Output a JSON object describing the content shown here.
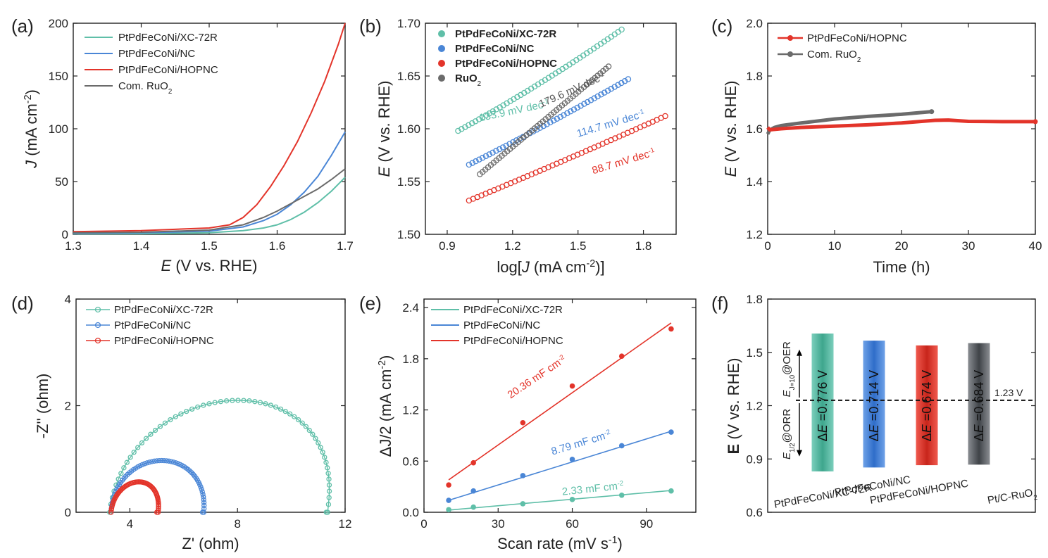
{
  "chart_data": [
    {
      "id": "a",
      "type": "line",
      "panel_label": "(a)",
      "xlabel_italic": "E",
      "xlabel_rest": " (V vs. RHE)",
      "ylabel_italic": "J",
      "ylabel_rest": " (mA cm",
      "ylabel_sup": "-2",
      "ylabel_end": ")",
      "xlim": [
        1.3,
        1.7
      ],
      "ylim": [
        0,
        200
      ],
      "xticks": [
        "1.3",
        "1.4",
        "1.5",
        "1.6",
        "1.7"
      ],
      "yticks": [
        "0",
        "50",
        "100",
        "150",
        "200"
      ],
      "series": [
        {
          "name": "PtPdFeCoNi/XC-72R",
          "color": "#5fbfa8",
          "x": [
            1.3,
            1.4,
            1.5,
            1.55,
            1.58,
            1.6,
            1.62,
            1.64,
            1.66,
            1.68,
            1.7
          ],
          "y": [
            0.5,
            0.6,
            1.5,
            3.5,
            6,
            9,
            14,
            21,
            30,
            41,
            54
          ]
        },
        {
          "name": "PtPdFeCoNi/NC",
          "color": "#4a86d6",
          "x": [
            1.3,
            1.4,
            1.5,
            1.55,
            1.58,
            1.6,
            1.62,
            1.64,
            1.66,
            1.68,
            1.7
          ],
          "y": [
            1,
            1.5,
            3,
            7,
            13,
            19,
            28,
            40,
            55,
            75,
            97
          ]
        },
        {
          "name": "PtPdFeCoNi/HOPNC",
          "color": "#e3342a",
          "x": [
            1.3,
            1.4,
            1.5,
            1.53,
            1.55,
            1.57,
            1.59,
            1.61,
            1.63,
            1.65,
            1.67,
            1.69,
            1.7
          ],
          "y": [
            2.5,
            3.5,
            6,
            9,
            16,
            28,
            45,
            65,
            88,
            115,
            145,
            180,
            200
          ]
        },
        {
          "name": "Com. RuO2",
          "color": "#6b6b6b",
          "x": [
            1.3,
            1.4,
            1.5,
            1.55,
            1.58,
            1.6,
            1.62,
            1.64,
            1.66,
            1.68,
            1.7
          ],
          "y": [
            1.5,
            2,
            4,
            9,
            16,
            22,
            29,
            36,
            43,
            52,
            62
          ]
        }
      ],
      "legend": [
        "PtPdFeCoNi/XC-72R",
        "PtPdFeCoNi/NC",
        "PtPdFeCoNi/HOPNC",
        "Com. RuO"
      ],
      "legend_sub": [
        "",
        "",
        "",
        "2"
      ]
    },
    {
      "id": "b",
      "type": "scatter",
      "panel_label": "(b)",
      "xlabel": "log[",
      "xlabel_italic": "J",
      "xlabel_rest": " (mA cm",
      "xlabel_sup": "-2",
      "xlabel_end": ")]",
      "ylabel_italic": "E",
      "ylabel_rest": " (V vs. RHE)",
      "xlim": [
        0.8,
        1.95
      ],
      "ylim": [
        1.5,
        1.7
      ],
      "xticks": [
        "0.9",
        "1.2",
        "1.5",
        "1.8"
      ],
      "xtick_values": [
        0.9,
        1.2,
        1.5,
        1.8
      ],
      "yticks": [
        "1.50",
        "1.55",
        "1.60",
        "1.65",
        "1.70"
      ],
      "ytick_values": [
        1.5,
        1.55,
        1.6,
        1.65,
        1.7
      ],
      "series": [
        {
          "name": "PtPdFeCoNi/XC-72R",
          "color": "#5fbfa8",
          "x0": 0.95,
          "x1": 1.7,
          "y0": 1.598,
          "y1": 1.694,
          "curve": 0.015
        },
        {
          "name": "PtPdFeCoNi/NC",
          "color": "#4a86d6",
          "x0": 1.0,
          "x1": 1.73,
          "y0": 1.566,
          "y1": 1.647,
          "curve": 0.008
        },
        {
          "name": "PtPdFeCoNi/HOPNC",
          "color": "#e3342a",
          "x0": 1.0,
          "x1": 1.9,
          "y0": 1.532,
          "y1": 1.612,
          "curve": 0.005
        },
        {
          "name": "RuO2",
          "color": "#6b6b6b",
          "x0": 1.05,
          "x1": 1.64,
          "y0": 1.557,
          "y1": 1.659,
          "curve": 0.0
        }
      ],
      "legend": [
        "PtPdFeCoNi/XC-72R",
        "PtPdFeCoNi/NC",
        "PtPdFeCoNi/HOPNC",
        "RuO"
      ],
      "legend_sub": [
        "",
        "",
        "",
        "2"
      ],
      "annotations": [
        {
          "text": "133.9 mV dec",
          "sup": "-1",
          "color": "#5fbfa8",
          "x": 1.05,
          "y": 1.607,
          "rot": -12
        },
        {
          "text": "179.6 mV dec",
          "sup": "-1",
          "color": "#555555",
          "x": 1.33,
          "y": 1.62,
          "rot": -24
        },
        {
          "text": "114.7 mV dec",
          "sup": "-1",
          "color": "#4a86d6",
          "x": 1.5,
          "y": 1.592,
          "rot": -17
        },
        {
          "text": "88.7 mV dec",
          "sup": "-1",
          "color": "#e3342a",
          "x": 1.57,
          "y": 1.557,
          "rot": -17
        }
      ]
    },
    {
      "id": "c",
      "type": "line",
      "panel_label": "(c)",
      "xlabel": "Time (h)",
      "ylabel_italic": "E",
      "ylabel_rest": " (V vs. RHE)",
      "xlim": [
        0,
        40
      ],
      "ylim": [
        1.2,
        2.0
      ],
      "xticks": [
        "0",
        "10",
        "20",
        "30",
        "40"
      ],
      "yticks": [
        "1.2",
        "1.4",
        "1.6",
        "1.8",
        "2.0"
      ],
      "series": [
        {
          "name": "PtPdFeCoNi/HOPNC",
          "color": "#e3342a",
          "x": [
            0,
            0.3,
            2,
            5,
            10,
            15,
            20,
            25,
            27,
            30,
            35,
            40
          ],
          "y": [
            1.605,
            1.596,
            1.6,
            1.605,
            1.61,
            1.615,
            1.622,
            1.632,
            1.633,
            1.628,
            1.627,
            1.627
          ]
        },
        {
          "name": "Com. RuO2",
          "color": "#6b6b6b",
          "x": [
            0,
            0.3,
            1,
            2,
            5,
            10,
            15,
            20,
            24.5
          ],
          "y": [
            1.58,
            1.595,
            1.605,
            1.612,
            1.622,
            1.637,
            1.647,
            1.655,
            1.665
          ]
        }
      ],
      "legend": [
        "PtPdFeCoNi/HOPNC",
        "Com. RuO"
      ],
      "legend_sub": [
        "",
        "2"
      ]
    },
    {
      "id": "d",
      "type": "scatter",
      "panel_label": "(d)",
      "xlabel": "Z' (ohm)",
      "ylabel": "-Z'' (ohm)",
      "xlim": [
        2,
        12
      ],
      "ylim": [
        0,
        4
      ],
      "xticks": [
        "4",
        "8",
        "12"
      ],
      "xtick_values": [
        4,
        8,
        12
      ],
      "yticks": [
        "0",
        "2",
        "4"
      ],
      "ytick_values": [
        0,
        2,
        4
      ],
      "series": [
        {
          "name": "PtPdFeCoNi/XC-72R",
          "color": "#5fbfa8",
          "start": 3.25,
          "end": 11.35,
          "height": 2.1,
          "peak": 8.1
        },
        {
          "name": "PtPdFeCoNi/NC",
          "color": "#4a86d6",
          "start": 3.3,
          "end": 6.75,
          "height": 0.97,
          "peak": 5.2
        },
        {
          "name": "PtPdFeCoNi/HOPNC",
          "color": "#e3342a",
          "start": 3.3,
          "end": 5.05,
          "height": 0.57,
          "peak": 4.35
        }
      ],
      "legend": [
        "PtPdFeCoNi/XC-72R",
        "PtPdFeCoNi/NC",
        "PtPdFeCoNi/HOPNC"
      ]
    },
    {
      "id": "e",
      "type": "scatter",
      "panel_label": "(e)",
      "xlabel": "Scan rate (mV s",
      "xlabel_sup": "-1",
      "xlabel_end": ")",
      "ylabel": "ΔJ/2 (mA cm",
      "ylabel_sup": "-2",
      "ylabel_end": ")",
      "xlim": [
        0,
        110
      ],
      "ylim": [
        0,
        2.5
      ],
      "xticks": [
        "0",
        "30",
        "60",
        "90"
      ],
      "xtick_values": [
        0,
        30,
        60,
        90
      ],
      "yticks": [
        "0.0",
        "0.6",
        "1.2",
        "1.8",
        "2.4"
      ],
      "ytick_values": [
        0,
        0.6,
        1.2,
        1.8,
        2.4
      ],
      "series": [
        {
          "name": "PtPdFeCoNi/XC-72R",
          "color": "#5fbfa8",
          "x": [
            10,
            20,
            40,
            60,
            80,
            100
          ],
          "y": [
            0.03,
            0.06,
            0.1,
            0.15,
            0.2,
            0.25
          ],
          "fit": [
            [
              10,
              0.025
            ],
            [
              100,
              0.255
            ]
          ]
        },
        {
          "name": "PtPdFeCoNi/NC",
          "color": "#4a86d6",
          "x": [
            10,
            20,
            40,
            60,
            80,
            100
          ],
          "y": [
            0.14,
            0.25,
            0.43,
            0.62,
            0.78,
            0.94
          ],
          "fit": [
            [
              10,
              0.14
            ],
            [
              100,
              0.95
            ]
          ]
        },
        {
          "name": "PtPdFeCoNi/HOPNC",
          "color": "#e3342a",
          "x": [
            10,
            20,
            40,
            60,
            80,
            100
          ],
          "y": [
            0.32,
            0.58,
            1.05,
            1.48,
            1.83,
            2.15
          ],
          "fit": [
            [
              10,
              0.38
            ],
            [
              100,
              2.22
            ]
          ]
        }
      ],
      "legend": [
        "PtPdFeCoNi/XC-72R",
        "PtPdFeCoNi/NC",
        "PtPdFeCoNi/HOPNC"
      ],
      "annotations": [
        {
          "text": "20.36 mF cm",
          "sup": "-2",
          "color": "#e3342a",
          "x": 35,
          "y": 1.33,
          "rot": -34
        },
        {
          "text": "8.79 mF cm",
          "sup": "-2",
          "color": "#4a86d6",
          "x": 52,
          "y": 0.67,
          "rot": -17
        },
        {
          "text": "2.33 mF cm",
          "sup": "-2",
          "color": "#5fbfa8",
          "x": 56,
          "y": 0.2,
          "rot": -6
        }
      ]
    },
    {
      "id": "f",
      "type": "bar",
      "panel_label": "(f)",
      "ylabel": "E (V vs. RHE)",
      "ylim": [
        0.6,
        1.8
      ],
      "yticks": [
        "0.6",
        "0.9",
        "1.2",
        "1.5",
        "1.8"
      ],
      "ytick_values": [
        0.6,
        0.9,
        1.2,
        1.5,
        1.8
      ],
      "categories": [
        "PtPdFeCoNi/XC-72R",
        "PtPdFeCoNi/NC",
        "PtPdFeCoNi/HOPNC",
        "Pt/C-RuO"
      ],
      "category_sub": [
        "",
        "",
        "",
        "2"
      ],
      "bars": [
        {
          "low": 0.83,
          "high": 1.606,
          "color": "#7ccfbc",
          "dark": "#3ea68d",
          "label": "ΔE =0.776 V"
        },
        {
          "low": 0.852,
          "high": 1.566,
          "color": "#6fa2e8",
          "dark": "#2f6dc9",
          "label": "ΔE =0.714 V"
        },
        {
          "low": 0.865,
          "high": 1.539,
          "color": "#f05a4f",
          "dark": "#c8251b",
          "label": "ΔE =0.674 V"
        },
        {
          "low": 0.868,
          "high": 1.552,
          "color": "#8a8d92",
          "dark": "#3f4348",
          "label": "ΔE =0.684 V"
        }
      ],
      "reference_line": 1.23,
      "reference_label": "1.23 V",
      "oer_label_main": "E",
      "oer_label_sub": "J=10",
      "oer_label_rest": "@OER",
      "orr_label_main": "E",
      "orr_label_sub": "1/2",
      "orr_label_rest": "@ORR"
    }
  ]
}
